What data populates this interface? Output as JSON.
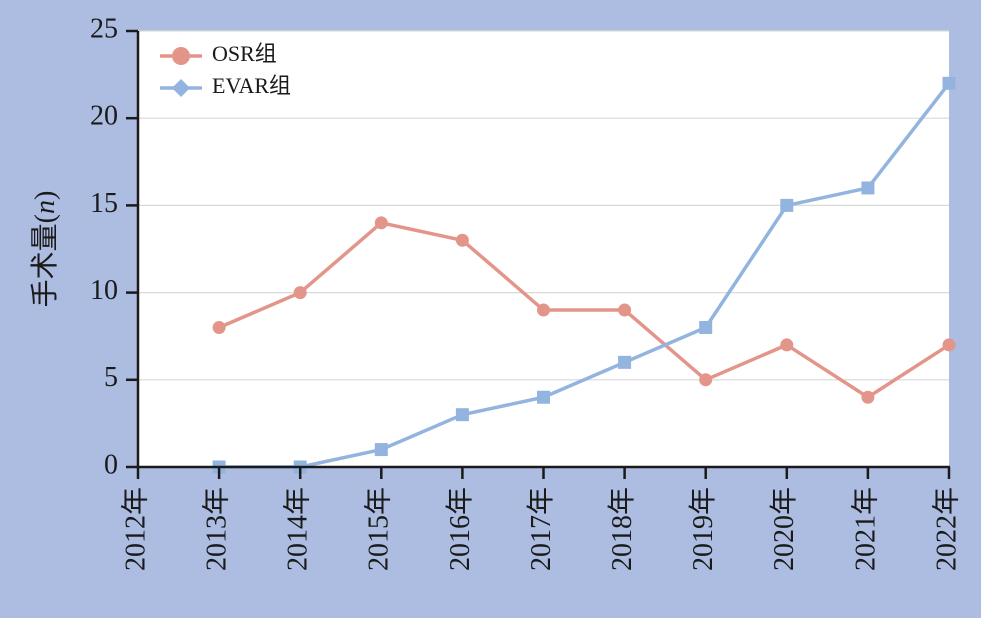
{
  "colors": {
    "background": "#adbde2",
    "plot_background": "#ffffff",
    "grid": "#d9d9d9",
    "osr": "#e3958a",
    "evar": "#93b4df",
    "axis": "#1a1a1a"
  },
  "chart_data": {
    "type": "line",
    "title": "",
    "xlabel": "",
    "ylabel": "手术量(n)",
    "ylabel_parts": {
      "prefix": "手术量(",
      "italic": "n",
      "suffix": ")"
    },
    "categories": [
      "2012年",
      "2013年",
      "2014年",
      "2015年",
      "2016年",
      "2017年",
      "2018年",
      "2019年",
      "2020年",
      "2021年",
      "2022年"
    ],
    "ylim": [
      0,
      25
    ],
    "yticks": [
      0,
      5,
      10,
      15,
      20,
      25
    ],
    "grid": "horizontal",
    "legend_position": "top-left",
    "series": [
      {
        "name": "OSR组",
        "color": "#e3958a",
        "marker": "circle",
        "legend_marker": "circle",
        "values": [
          null,
          8,
          10,
          14,
          13,
          9,
          9,
          5,
          7,
          4,
          7
        ]
      },
      {
        "name": "EVAR组",
        "color": "#93b4df",
        "marker": "square",
        "legend_marker": "diamond",
        "values": [
          null,
          0,
          0,
          1,
          3,
          4,
          6,
          8,
          15,
          16,
          22
        ]
      }
    ]
  }
}
